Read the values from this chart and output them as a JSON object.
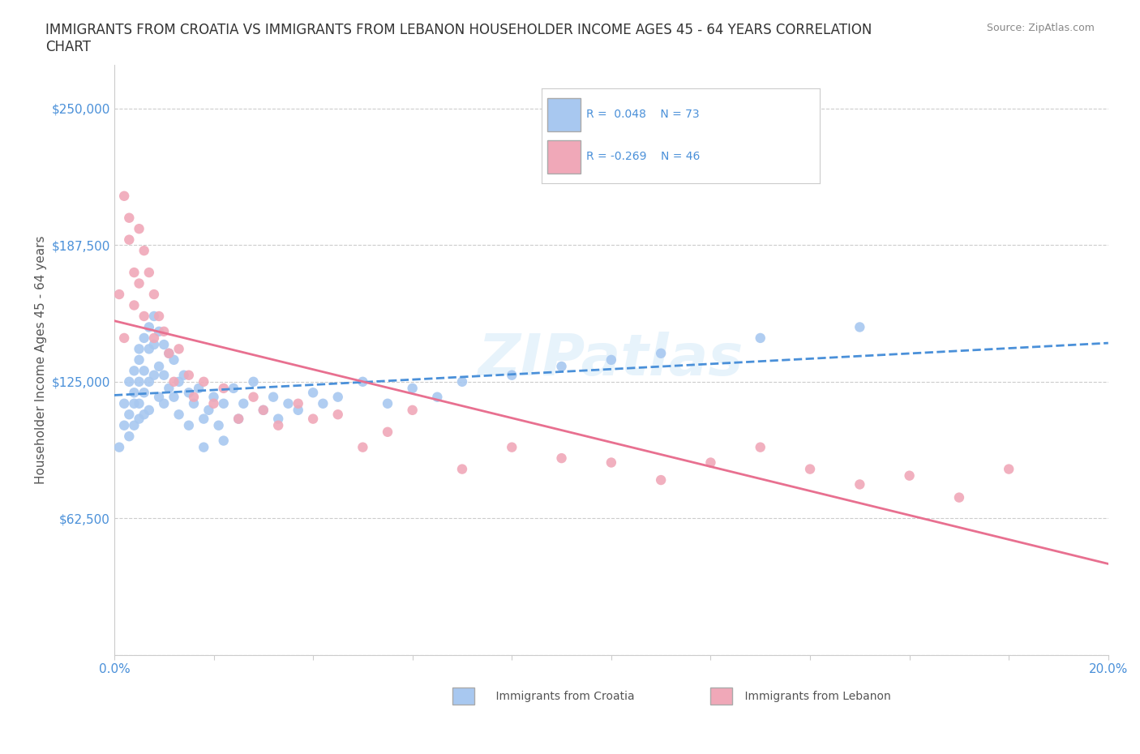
{
  "title": "IMMIGRANTS FROM CROATIA VS IMMIGRANTS FROM LEBANON HOUSEHOLDER INCOME AGES 45 - 64 YEARS CORRELATION\nCHART",
  "source": "Source: ZipAtlas.com",
  "xlabel": "",
  "ylabel": "Householder Income Ages 45 - 64 years",
  "xlim": [
    0.0,
    0.2
  ],
  "ylim": [
    0,
    270000
  ],
  "yticks": [
    0,
    62500,
    125000,
    187500,
    250000
  ],
  "ytick_labels": [
    "",
    "$62,500",
    "$125,000",
    "$187,500",
    "$250,000"
  ],
  "xticks": [
    0.0,
    0.02,
    0.04,
    0.06,
    0.08,
    0.1,
    0.12,
    0.14,
    0.16,
    0.18,
    0.2
  ],
  "xtick_labels": [
    "0.0%",
    "",
    "",
    "",
    "",
    "",
    "",
    "",
    "",
    "",
    "20.0%"
  ],
  "croatia_color": "#a8c8f0",
  "lebanon_color": "#f0a8b8",
  "croatia_R": 0.048,
  "croatia_N": 73,
  "lebanon_R": -0.269,
  "lebanon_N": 46,
  "croatia_line_color": "#4a90d9",
  "lebanon_line_color": "#e87090",
  "watermark": "ZIPatlas",
  "background_color": "#ffffff",
  "croatia_x": [
    0.001,
    0.002,
    0.002,
    0.003,
    0.003,
    0.003,
    0.004,
    0.004,
    0.004,
    0.004,
    0.005,
    0.005,
    0.005,
    0.005,
    0.005,
    0.006,
    0.006,
    0.006,
    0.006,
    0.007,
    0.007,
    0.007,
    0.007,
    0.008,
    0.008,
    0.008,
    0.009,
    0.009,
    0.009,
    0.01,
    0.01,
    0.01,
    0.011,
    0.011,
    0.012,
    0.012,
    0.013,
    0.013,
    0.014,
    0.015,
    0.015,
    0.016,
    0.017,
    0.018,
    0.018,
    0.019,
    0.02,
    0.021,
    0.022,
    0.022,
    0.024,
    0.025,
    0.026,
    0.028,
    0.03,
    0.032,
    0.033,
    0.035,
    0.037,
    0.04,
    0.042,
    0.045,
    0.05,
    0.055,
    0.06,
    0.065,
    0.07,
    0.08,
    0.09,
    0.1,
    0.11,
    0.13,
    0.15
  ],
  "croatia_y": [
    95000,
    115000,
    105000,
    125000,
    110000,
    100000,
    130000,
    120000,
    115000,
    105000,
    140000,
    135000,
    125000,
    115000,
    108000,
    145000,
    130000,
    120000,
    110000,
    150000,
    140000,
    125000,
    112000,
    155000,
    142000,
    128000,
    148000,
    132000,
    118000,
    142000,
    128000,
    115000,
    138000,
    122000,
    135000,
    118000,
    125000,
    110000,
    128000,
    120000,
    105000,
    115000,
    122000,
    108000,
    95000,
    112000,
    118000,
    105000,
    115000,
    98000,
    122000,
    108000,
    115000,
    125000,
    112000,
    118000,
    108000,
    115000,
    112000,
    120000,
    115000,
    118000,
    125000,
    115000,
    122000,
    118000,
    125000,
    128000,
    132000,
    135000,
    138000,
    145000,
    150000
  ],
  "lebanon_x": [
    0.001,
    0.002,
    0.002,
    0.003,
    0.003,
    0.004,
    0.004,
    0.005,
    0.005,
    0.006,
    0.006,
    0.007,
    0.008,
    0.008,
    0.009,
    0.01,
    0.011,
    0.012,
    0.013,
    0.015,
    0.016,
    0.018,
    0.02,
    0.022,
    0.025,
    0.028,
    0.03,
    0.033,
    0.037,
    0.04,
    0.045,
    0.05,
    0.055,
    0.06,
    0.07,
    0.08,
    0.09,
    0.1,
    0.11,
    0.12,
    0.13,
    0.14,
    0.15,
    0.16,
    0.17,
    0.18
  ],
  "lebanon_y": [
    165000,
    210000,
    145000,
    200000,
    190000,
    175000,
    160000,
    195000,
    170000,
    185000,
    155000,
    175000,
    165000,
    145000,
    155000,
    148000,
    138000,
    125000,
    140000,
    128000,
    118000,
    125000,
    115000,
    122000,
    108000,
    118000,
    112000,
    105000,
    115000,
    108000,
    110000,
    95000,
    102000,
    112000,
    85000,
    95000,
    90000,
    88000,
    80000,
    88000,
    95000,
    85000,
    78000,
    82000,
    72000,
    85000
  ]
}
